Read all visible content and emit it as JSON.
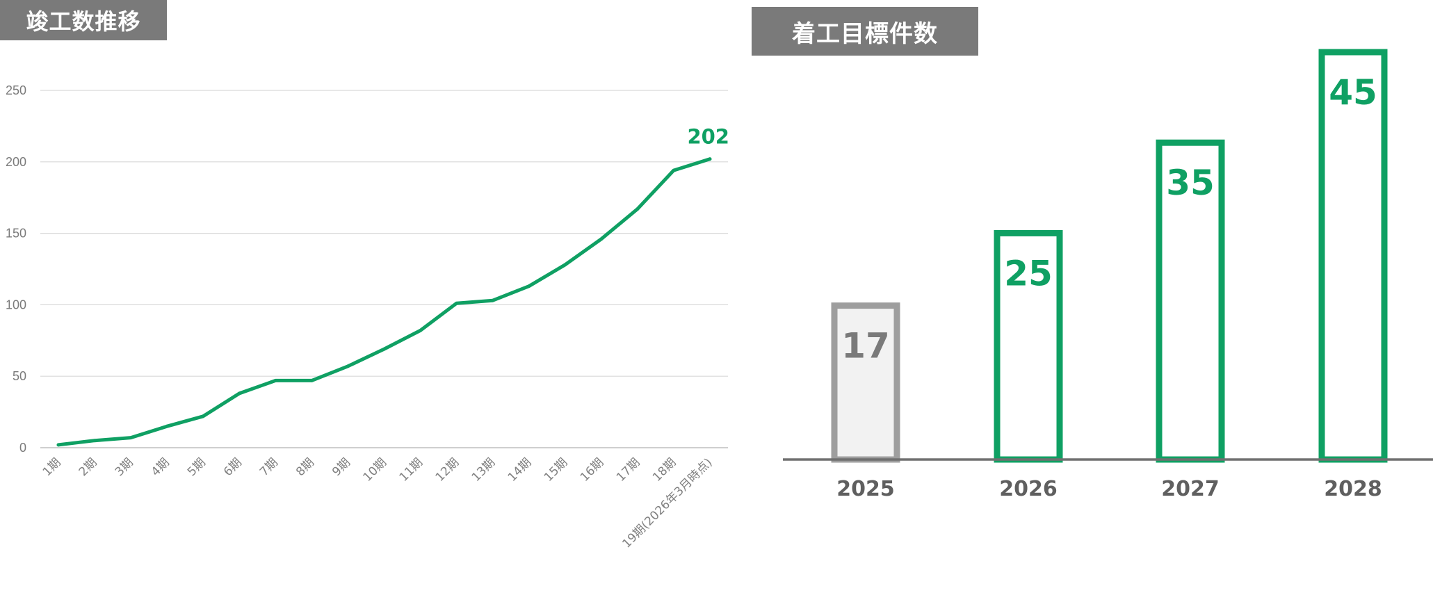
{
  "chart_data": [
    {
      "type": "line",
      "title": "竣工数推移",
      "categories": [
        "1期",
        "2期",
        "3期",
        "4期",
        "5期",
        "6期",
        "7期",
        "8期",
        "9期",
        "10期",
        "11期",
        "12期",
        "13期",
        "14期",
        "15期",
        "16期",
        "17期",
        "18期",
        "19期(2026年3月時点)"
      ],
      "series": [
        {
          "values": [
            2,
            5,
            7,
            15,
            22,
            38,
            47,
            47,
            57,
            69,
            82,
            101,
            103,
            113,
            128,
            146,
            167,
            194,
            202
          ]
        }
      ],
      "end_label": "202",
      "ylim": [
        0,
        250
      ],
      "yticks": [
        0,
        50,
        100,
        150,
        200,
        250
      ],
      "xlabel": "",
      "ylabel": "",
      "grid": true,
      "colors": {
        "line": "#0fa063",
        "grid": "#d9d9d9",
        "axis": "#bfbfbf"
      }
    },
    {
      "type": "bar",
      "title": "着工目標件数",
      "categories": [
        "2025",
        "2026",
        "2027",
        "2028"
      ],
      "values": [
        17,
        25,
        35,
        45
      ],
      "value_labels": [
        "17",
        "25",
        "35",
        "45"
      ],
      "ylim": [
        0,
        45
      ],
      "xlabel": "",
      "ylabel": "",
      "grid": false,
      "colors": {
        "highlight": "#0fa063",
        "muted_border": "#9e9e9e",
        "muted_fill": "#f2f2f2",
        "muted_text": "#7a7a7a",
        "baseline": "#707070"
      }
    }
  ]
}
